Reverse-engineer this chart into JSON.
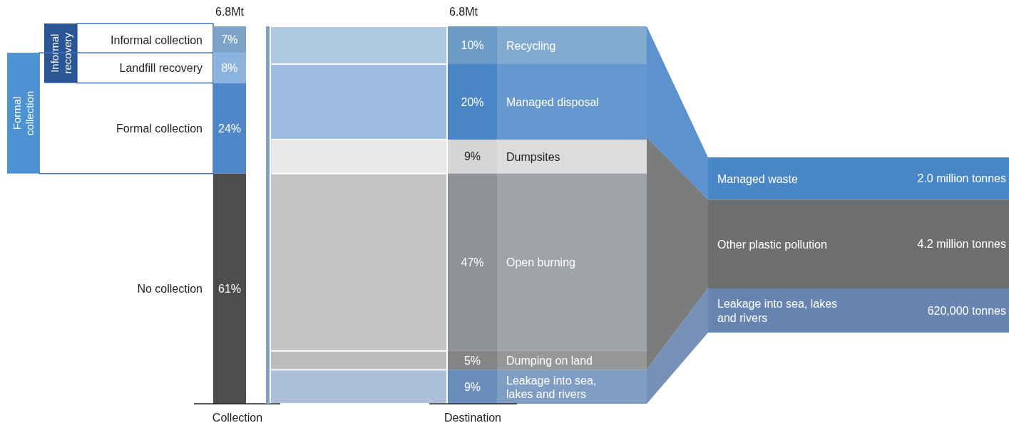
{
  "chart_data": [
    {
      "type": "other",
      "title": "6.8Mt",
      "xlabel": "Collection",
      "categories": [
        "Informal collection",
        "Landfill recovery",
        "Formal collection",
        "No collection"
      ],
      "values": [
        7,
        8,
        24,
        61
      ],
      "value_labels": [
        "7%",
        "8%",
        "24%",
        "61%"
      ],
      "colors": [
        "#7ea3c8",
        "#8cb2e0",
        "#4f87c9",
        "#4d4d4d"
      ],
      "annotations": [
        "Informal recovery",
        "Formal collection"
      ]
    },
    {
      "type": "other",
      "title": "6.8Mt",
      "xlabel": "Destination",
      "categories": [
        "Recycling",
        "Managed disposal",
        "Dumpsites",
        "Open burning",
        "Dumping on land",
        "Leakage into sea, lakes and rivers"
      ],
      "values": [
        10,
        20,
        9,
        47,
        5,
        9
      ],
      "value_labels": [
        "10%",
        "20%",
        "9%",
        "47%",
        "5%",
        "9%"
      ],
      "colors": [
        "#6c9bc8",
        "#4a85c8",
        "#d6d6d6",
        "#8f9398",
        "#858585",
        "#6a8cba"
      ]
    },
    {
      "type": "other",
      "categories": [
        "Managed waste",
        "Other plastic pollution",
        "Leakage into sea, lakes and rivers"
      ],
      "values": [
        2000000,
        4200000,
        620000
      ],
      "value_labels": [
        "2.0 million tonnes",
        "4.2 million tonnes",
        "620,000 tonnes"
      ],
      "colors": [
        "#4a87c9",
        "#6d6e70",
        "#6784b0"
      ]
    }
  ]
}
